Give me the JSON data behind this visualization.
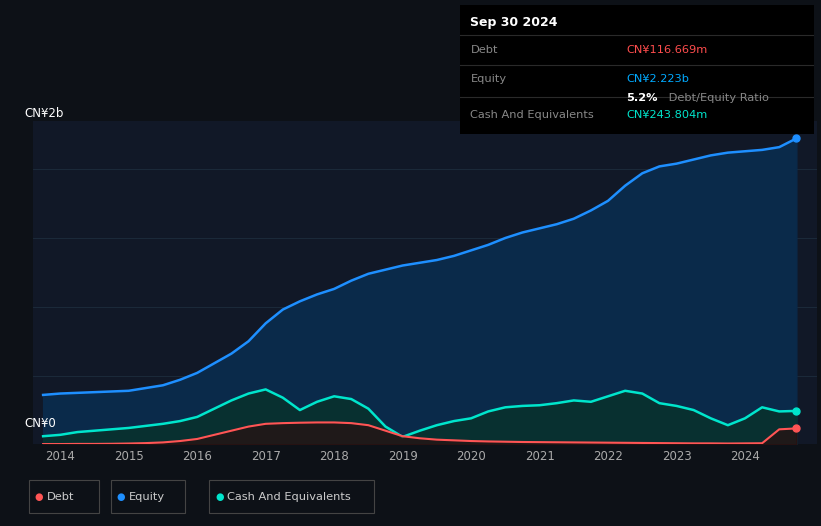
{
  "background_color": "#0d1117",
  "plot_bg_color": "#111827",
  "title_box": {
    "date": "Sep 30 2024",
    "debt_label": "Debt",
    "debt_value": "CN¥116.669m",
    "debt_color": "#ff4d4d",
    "equity_label": "Equity",
    "equity_value": "CN¥2.223b",
    "equity_color": "#00aaff",
    "ratio_value": "5.2%",
    "ratio_label": " Debt/Equity Ratio",
    "cash_label": "Cash And Equivalents",
    "cash_value": "CN¥243.804m",
    "cash_color": "#00e5cc"
  },
  "ylabel_top": "CN¥2b",
  "ylabel_bottom": "CN¥0",
  "ylim": [
    0,
    2350000000.0
  ],
  "xlim_start": 2013.6,
  "xlim_end": 2025.05,
  "xtick_labels": [
    "2014",
    "2015",
    "2016",
    "2017",
    "2018",
    "2019",
    "2020",
    "2021",
    "2022",
    "2023",
    "2024"
  ],
  "xtick_values": [
    2014,
    2015,
    2016,
    2017,
    2018,
    2019,
    2020,
    2021,
    2022,
    2023,
    2024
  ],
  "equity_x": [
    2013.75,
    2014.0,
    2014.25,
    2014.5,
    2014.75,
    2015.0,
    2015.25,
    2015.5,
    2015.75,
    2016.0,
    2016.25,
    2016.5,
    2016.75,
    2017.0,
    2017.25,
    2017.5,
    2017.75,
    2018.0,
    2018.25,
    2018.5,
    2018.75,
    2019.0,
    2019.25,
    2019.5,
    2019.75,
    2020.0,
    2020.25,
    2020.5,
    2020.75,
    2021.0,
    2021.25,
    2021.5,
    2021.75,
    2022.0,
    2022.25,
    2022.5,
    2022.75,
    2023.0,
    2023.25,
    2023.5,
    2023.75,
    2024.0,
    2024.25,
    2024.5,
    2024.75
  ],
  "equity_y": [
    360000000.0,
    370000000.0,
    375000000.0,
    380000000.0,
    385000000.0,
    390000000.0,
    410000000.0,
    430000000.0,
    470000000.0,
    520000000.0,
    590000000.0,
    660000000.0,
    750000000.0,
    880000000.0,
    980000000.0,
    1040000000.0,
    1090000000.0,
    1130000000.0,
    1190000000.0,
    1240000000.0,
    1270000000.0,
    1300000000.0,
    1320000000.0,
    1340000000.0,
    1370000000.0,
    1410000000.0,
    1450000000.0,
    1500000000.0,
    1540000000.0,
    1570000000.0,
    1600000000.0,
    1640000000.0,
    1700000000.0,
    1770000000.0,
    1880000000.0,
    1970000000.0,
    2020000000.0,
    2040000000.0,
    2070000000.0,
    2100000000.0,
    2120000000.0,
    2130000000.0,
    2140000000.0,
    2160000000.0,
    2223000000.0
  ],
  "cash_x": [
    2013.75,
    2014.0,
    2014.25,
    2014.5,
    2014.75,
    2015.0,
    2015.25,
    2015.5,
    2015.75,
    2016.0,
    2016.25,
    2016.5,
    2016.75,
    2017.0,
    2017.25,
    2017.5,
    2017.75,
    2018.0,
    2018.25,
    2018.5,
    2018.75,
    2019.0,
    2019.25,
    2019.5,
    2019.75,
    2020.0,
    2020.25,
    2020.5,
    2020.75,
    2021.0,
    2021.25,
    2021.5,
    2021.75,
    2022.0,
    2022.25,
    2022.5,
    2022.75,
    2023.0,
    2023.25,
    2023.5,
    2023.75,
    2024.0,
    2024.25,
    2024.5,
    2024.75
  ],
  "cash_y": [
    60000000.0,
    70000000.0,
    90000000.0,
    100000000.0,
    110000000.0,
    120000000.0,
    135000000.0,
    150000000.0,
    170000000.0,
    200000000.0,
    260000000.0,
    320000000.0,
    370000000.0,
    400000000.0,
    340000000.0,
    250000000.0,
    310000000.0,
    350000000.0,
    330000000.0,
    260000000.0,
    130000000.0,
    55000000.0,
    100000000.0,
    140000000.0,
    170000000.0,
    190000000.0,
    240000000.0,
    270000000.0,
    280000000.0,
    285000000.0,
    300000000.0,
    320000000.0,
    310000000.0,
    350000000.0,
    390000000.0,
    370000000.0,
    300000000.0,
    280000000.0,
    250000000.0,
    190000000.0,
    140000000.0,
    190000000.0,
    270000000.0,
    240000000.0,
    243800000.0
  ],
  "debt_x": [
    2013.75,
    2014.0,
    2014.25,
    2014.5,
    2014.75,
    2015.0,
    2015.25,
    2015.5,
    2015.75,
    2016.0,
    2016.25,
    2016.5,
    2016.75,
    2017.0,
    2017.25,
    2017.5,
    2017.75,
    2018.0,
    2018.25,
    2018.5,
    2018.75,
    2019.0,
    2019.25,
    2019.5,
    2019.75,
    2020.0,
    2020.25,
    2020.5,
    2020.75,
    2021.0,
    2021.25,
    2021.5,
    2021.75,
    2022.0,
    2022.25,
    2022.5,
    2022.75,
    2023.0,
    2023.25,
    2023.5,
    2023.75,
    2024.0,
    2024.25,
    2024.5,
    2024.75
  ],
  "debt_y": [
    3000000.0,
    3000000.0,
    4000000.0,
    4000000.0,
    5000000.0,
    7000000.0,
    10000000.0,
    15000000.0,
    25000000.0,
    40000000.0,
    70000000.0,
    100000000.0,
    130000000.0,
    150000000.0,
    155000000.0,
    158000000.0,
    160000000.0,
    160000000.0,
    155000000.0,
    140000000.0,
    100000000.0,
    60000000.0,
    45000000.0,
    35000000.0,
    30000000.0,
    25000000.0,
    22000000.0,
    20000000.0,
    18000000.0,
    17000000.0,
    16000000.0,
    15000000.0,
    14000000.0,
    13000000.0,
    12000000.0,
    11000000.0,
    10000000.0,
    9000000.0,
    8000000.0,
    8000000.0,
    7000000.0,
    8000000.0,
    9000000.0,
    110000000.0,
    116670000.0
  ],
  "equity_fill_color": "#0a2a4a",
  "cash_fill_color": "#083030",
  "equity_line_color": "#1e8fff",
  "cash_line_color": "#00e5cc",
  "debt_line_color": "#ff5555",
  "grid_color": "#1e2d3d",
  "text_color": "#aaaaaa"
}
